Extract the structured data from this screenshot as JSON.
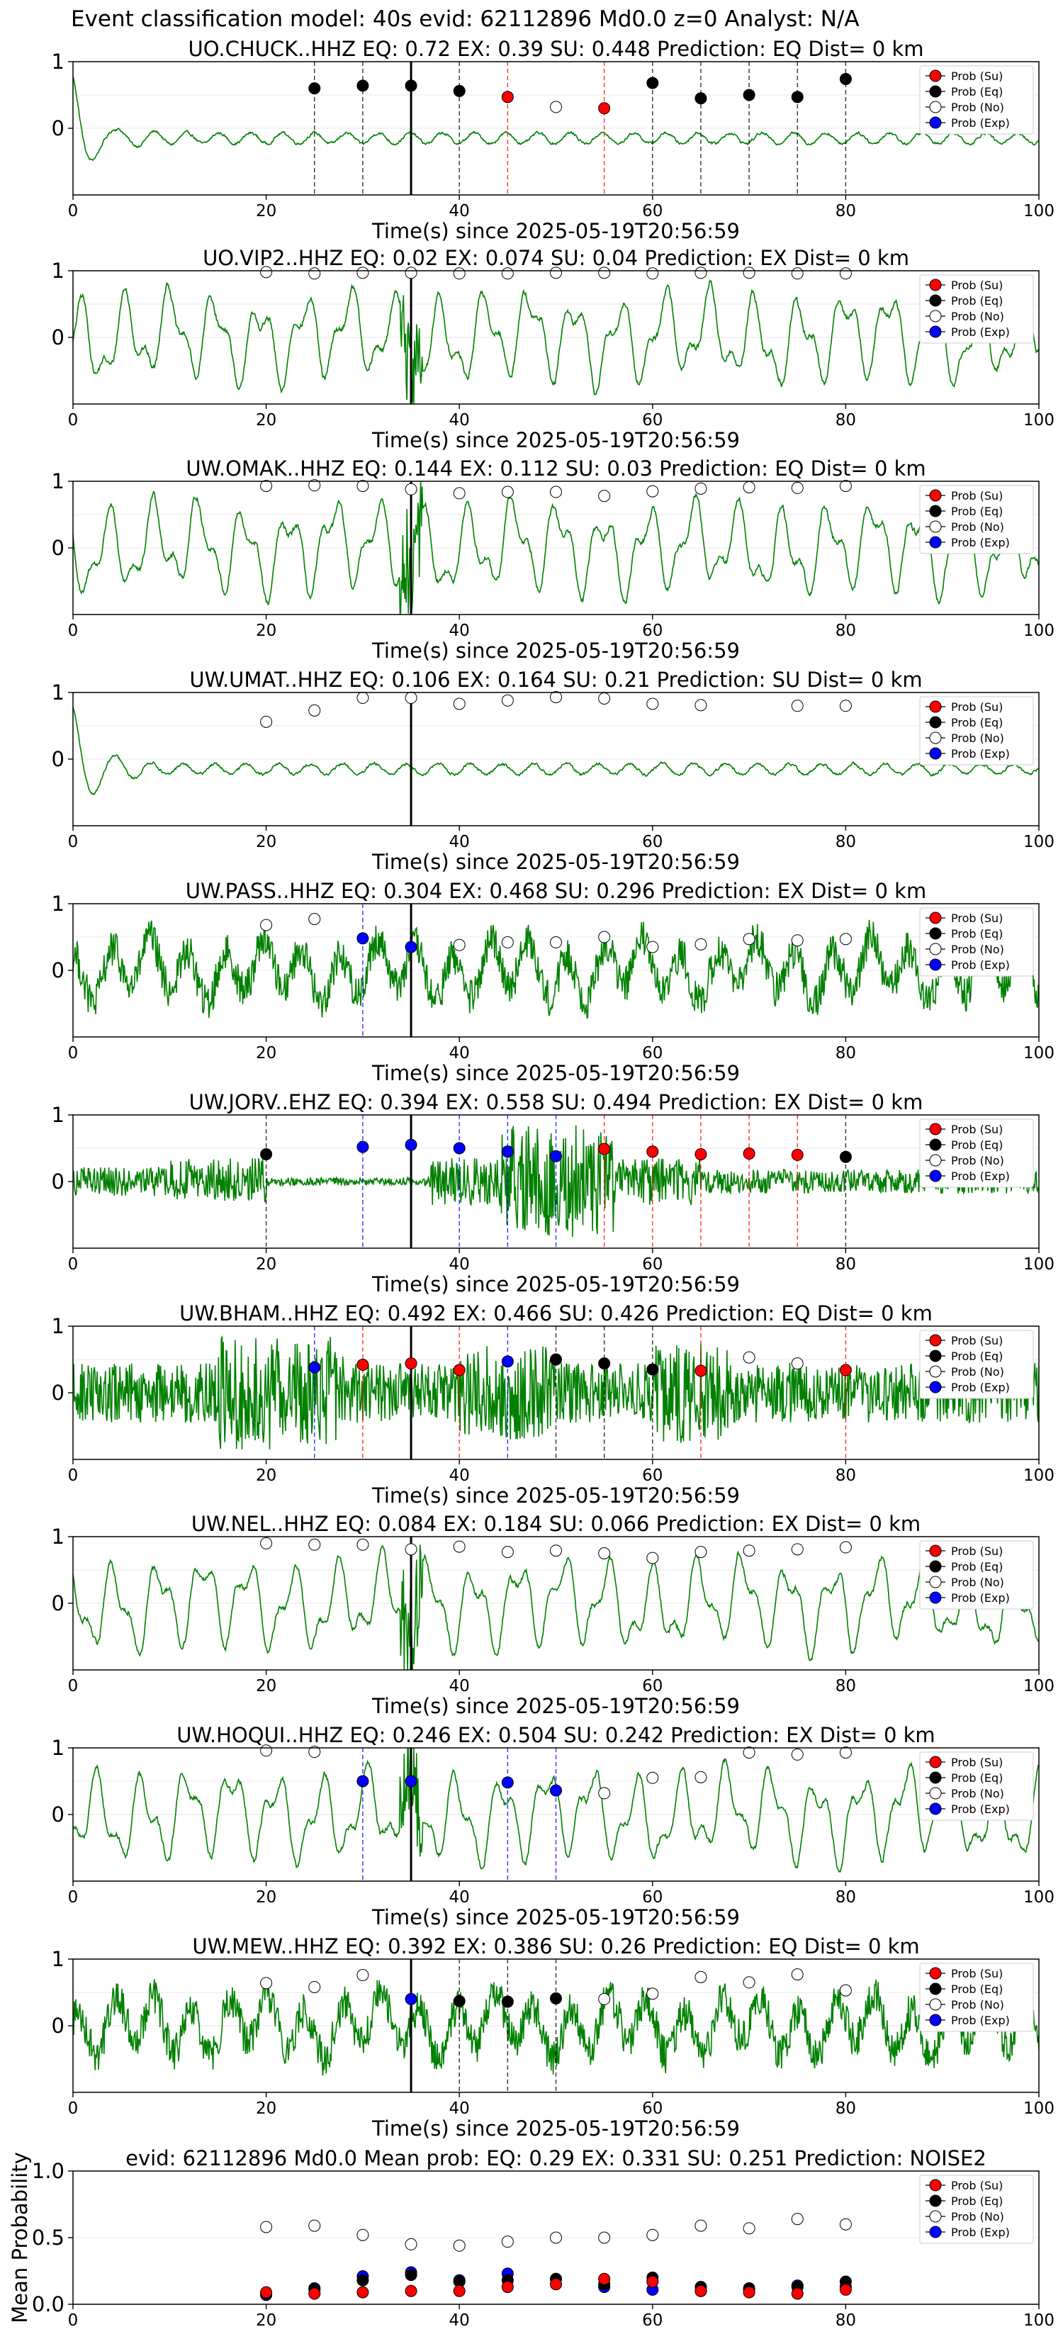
{
  "figure": {
    "suptitle": "Event classification model: 40s evid: 62112896 Md0.0 z=0 Analyst: N/A"
  },
  "legend": {
    "entries": [
      {
        "key": "su",
        "label": "Prob (Su)",
        "color": "#ff0000"
      },
      {
        "key": "eq",
        "label": "Prob (Eq)",
        "color": "#000000"
      },
      {
        "key": "no",
        "label": "Prob (No)",
        "color": "#ffffff"
      },
      {
        "key": "exp",
        "label": "Prob (Exp)",
        "color": "#0000ff"
      }
    ]
  },
  "colors": {
    "waveform": "#008000",
    "su": "#ff0000",
    "eq": "#000000",
    "no": "#ffffff",
    "exp": "#0000ff",
    "axis": "#000000",
    "grid": "#e8e8e8"
  },
  "chart_data": [
    {
      "type": "line",
      "station": "UO.CHUCK..HHZ",
      "title": "UO.CHUCK..HHZ   EQ: 0.72  EX: 0.39  SU: 0.448   Prediction: EQ    Dist= 0 km",
      "xlabel": "Time(s) since 2025-05-19T20:56:59",
      "xlim": [
        0,
        100
      ],
      "ylim": [
        -1,
        1
      ],
      "x_ticks": [
        0,
        20,
        40,
        60,
        80,
        100
      ],
      "y_ticks": [
        0,
        1
      ],
      "legend_position": "top-right",
      "grid": true,
      "waveform_profile": "decay",
      "origin_time": 35,
      "points": [
        {
          "x": 25,
          "y": 0.6,
          "cls": "eq"
        },
        {
          "x": 30,
          "y": 0.64,
          "cls": "eq"
        },
        {
          "x": 35,
          "y": 0.64,
          "cls": "eq"
        },
        {
          "x": 40,
          "y": 0.56,
          "cls": "eq"
        },
        {
          "x": 45,
          "y": 0.47,
          "cls": "su"
        },
        {
          "x": 50,
          "y": 0.32,
          "cls": "no"
        },
        {
          "x": 55,
          "y": 0.3,
          "cls": "su"
        },
        {
          "x": 60,
          "y": 0.68,
          "cls": "eq"
        },
        {
          "x": 65,
          "y": 0.45,
          "cls": "eq"
        },
        {
          "x": 70,
          "y": 0.5,
          "cls": "eq"
        },
        {
          "x": 75,
          "y": 0.47,
          "cls": "eq"
        },
        {
          "x": 80,
          "y": 0.74,
          "cls": "eq"
        }
      ]
    },
    {
      "type": "line",
      "station": "UO.VIP2..HHZ",
      "title": "UO.VIP2..HHZ   EQ: 0.02  EX: 0.074  SU: 0.04   Prediction: EX    Dist= 0 km",
      "xlabel": "Time(s) since 2025-05-19T20:56:59",
      "xlim": [
        0,
        100
      ],
      "ylim": [
        -1,
        1
      ],
      "x_ticks": [
        0,
        20,
        40,
        60,
        80,
        100
      ],
      "y_ticks": [
        0,
        1
      ],
      "legend_position": "top-right",
      "grid": true,
      "waveform_profile": "wavy",
      "origin_time": 35,
      "points": [
        {
          "x": 20,
          "y": 0.98,
          "cls": "no"
        },
        {
          "x": 25,
          "y": 0.96,
          "cls": "no"
        },
        {
          "x": 30,
          "y": 0.97,
          "cls": "no"
        },
        {
          "x": 35,
          "y": 0.97,
          "cls": "no"
        },
        {
          "x": 40,
          "y": 0.96,
          "cls": "no"
        },
        {
          "x": 45,
          "y": 0.96,
          "cls": "no"
        },
        {
          "x": 50,
          "y": 0.97,
          "cls": "no"
        },
        {
          "x": 55,
          "y": 0.97,
          "cls": "no"
        },
        {
          "x": 60,
          "y": 0.96,
          "cls": "no"
        },
        {
          "x": 65,
          "y": 0.97,
          "cls": "no"
        },
        {
          "x": 70,
          "y": 0.97,
          "cls": "no"
        },
        {
          "x": 75,
          "y": 0.96,
          "cls": "no"
        },
        {
          "x": 80,
          "y": 0.96,
          "cls": "no"
        }
      ]
    },
    {
      "type": "line",
      "station": "UW.OMAK..HHZ",
      "title": "UW.OMAK..HHZ   EQ: 0.144  EX: 0.112  SU: 0.03   Prediction: EQ    Dist= 0 km",
      "xlabel": "Time(s) since 2025-05-19T20:56:59",
      "xlim": [
        0,
        100
      ],
      "ylim": [
        -1,
        1
      ],
      "x_ticks": [
        0,
        20,
        40,
        60,
        80,
        100
      ],
      "y_ticks": [
        0,
        1
      ],
      "legend_position": "top-right",
      "grid": true,
      "waveform_profile": "wavy",
      "origin_time": 35,
      "points": [
        {
          "x": 20,
          "y": 0.93,
          "cls": "no"
        },
        {
          "x": 25,
          "y": 0.94,
          "cls": "no"
        },
        {
          "x": 30,
          "y": 0.93,
          "cls": "no"
        },
        {
          "x": 35,
          "y": 0.88,
          "cls": "no"
        },
        {
          "x": 40,
          "y": 0.82,
          "cls": "no"
        },
        {
          "x": 45,
          "y": 0.84,
          "cls": "no"
        },
        {
          "x": 50,
          "y": 0.84,
          "cls": "no"
        },
        {
          "x": 55,
          "y": 0.78,
          "cls": "no"
        },
        {
          "x": 60,
          "y": 0.85,
          "cls": "no"
        },
        {
          "x": 65,
          "y": 0.89,
          "cls": "no"
        },
        {
          "x": 70,
          "y": 0.91,
          "cls": "no"
        },
        {
          "x": 75,
          "y": 0.9,
          "cls": "no"
        },
        {
          "x": 80,
          "y": 0.93,
          "cls": "no"
        }
      ]
    },
    {
      "type": "line",
      "station": "UW.UMAT..HHZ",
      "title": "UW.UMAT..HHZ   EQ: 0.106  EX: 0.164  SU: 0.21   Prediction: SU    Dist= 0 km",
      "xlabel": "Time(s) since 2025-05-19T20:56:59",
      "xlim": [
        0,
        100
      ],
      "ylim": [
        -1,
        1
      ],
      "x_ticks": [
        0,
        20,
        40,
        60,
        80,
        100
      ],
      "y_ticks": [
        0,
        1
      ],
      "legend_position": "top-right",
      "grid": true,
      "waveform_profile": "decay",
      "origin_time": 35,
      "points": [
        {
          "x": 20,
          "y": 0.56,
          "cls": "no"
        },
        {
          "x": 25,
          "y": 0.73,
          "cls": "no"
        },
        {
          "x": 30,
          "y": 0.92,
          "cls": "no"
        },
        {
          "x": 35,
          "y": 0.92,
          "cls": "no"
        },
        {
          "x": 40,
          "y": 0.83,
          "cls": "no"
        },
        {
          "x": 45,
          "y": 0.88,
          "cls": "no"
        },
        {
          "x": 50,
          "y": 0.93,
          "cls": "no"
        },
        {
          "x": 55,
          "y": 0.91,
          "cls": "no"
        },
        {
          "x": 60,
          "y": 0.83,
          "cls": "no"
        },
        {
          "x": 65,
          "y": 0.81,
          "cls": "no"
        },
        {
          "x": 75,
          "y": 0.8,
          "cls": "no"
        },
        {
          "x": 80,
          "y": 0.8,
          "cls": "no"
        }
      ]
    },
    {
      "type": "line",
      "station": "UW.PASS..HHZ",
      "title": "UW.PASS..HHZ   EQ: 0.304  EX: 0.468  SU: 0.296   Prediction: EX    Dist= 0 km",
      "xlabel": "Time(s) since 2025-05-19T20:56:59",
      "xlim": [
        0,
        100
      ],
      "ylim": [
        -1,
        1
      ],
      "x_ticks": [
        0,
        20,
        40,
        60,
        80,
        100
      ],
      "y_ticks": [
        0,
        1
      ],
      "legend_position": "top-right",
      "grid": true,
      "waveform_profile": "noisy",
      "origin_time": 35,
      "points": [
        {
          "x": 20,
          "y": 0.68,
          "cls": "no"
        },
        {
          "x": 25,
          "y": 0.77,
          "cls": "no"
        },
        {
          "x": 30,
          "y": 0.48,
          "cls": "exp"
        },
        {
          "x": 35,
          "y": 0.35,
          "cls": "exp"
        },
        {
          "x": 40,
          "y": 0.38,
          "cls": "no"
        },
        {
          "x": 45,
          "y": 0.42,
          "cls": "no"
        },
        {
          "x": 50,
          "y": 0.42,
          "cls": "no"
        },
        {
          "x": 55,
          "y": 0.5,
          "cls": "no"
        },
        {
          "x": 60,
          "y": 0.35,
          "cls": "no"
        },
        {
          "x": 65,
          "y": 0.39,
          "cls": "no"
        },
        {
          "x": 70,
          "y": 0.47,
          "cls": "no"
        },
        {
          "x": 75,
          "y": 0.45,
          "cls": "no"
        },
        {
          "x": 80,
          "y": 0.47,
          "cls": "no"
        }
      ]
    },
    {
      "type": "line",
      "station": "UW.JORV..EHZ",
      "title": "UW.JORV..EHZ   EQ: 0.394  EX: 0.558  SU: 0.494   Prediction: EX    Dist= 0 km",
      "xlabel": "Time(s) since 2025-05-19T20:56:59",
      "xlim": [
        0,
        100
      ],
      "ylim": [
        -1,
        1
      ],
      "x_ticks": [
        0,
        20,
        40,
        60,
        80,
        100
      ],
      "y_ticks": [
        0,
        1
      ],
      "legend_position": "top-right",
      "grid": true,
      "waveform_profile": "burst",
      "origin_time": 35,
      "points": [
        {
          "x": 20,
          "y": 0.41,
          "cls": "eq"
        },
        {
          "x": 30,
          "y": 0.52,
          "cls": "exp"
        },
        {
          "x": 35,
          "y": 0.55,
          "cls": "exp"
        },
        {
          "x": 40,
          "y": 0.5,
          "cls": "exp"
        },
        {
          "x": 45,
          "y": 0.45,
          "cls": "exp"
        },
        {
          "x": 50,
          "y": 0.38,
          "cls": "exp"
        },
        {
          "x": 55,
          "y": 0.49,
          "cls": "su"
        },
        {
          "x": 60,
          "y": 0.45,
          "cls": "su"
        },
        {
          "x": 65,
          "y": 0.41,
          "cls": "su"
        },
        {
          "x": 70,
          "y": 0.42,
          "cls": "su"
        },
        {
          "x": 75,
          "y": 0.4,
          "cls": "su"
        },
        {
          "x": 80,
          "y": 0.37,
          "cls": "eq"
        }
      ]
    },
    {
      "type": "line",
      "station": "UW.BHAM..HHZ",
      "title": "UW.BHAM..HHZ   EQ: 0.492  EX: 0.466  SU: 0.426   Prediction: EQ    Dist= 0 km",
      "xlabel": "Time(s) since 2025-05-19T20:56:59",
      "xlim": [
        0,
        100
      ],
      "ylim": [
        -1,
        1
      ],
      "x_ticks": [
        0,
        20,
        40,
        60,
        80,
        100
      ],
      "y_ticks": [
        0,
        1
      ],
      "legend_position": "top-right",
      "grid": true,
      "waveform_profile": "dense",
      "origin_time": 35,
      "points": [
        {
          "x": 25,
          "y": 0.38,
          "cls": "exp"
        },
        {
          "x": 30,
          "y": 0.42,
          "cls": "su"
        },
        {
          "x": 35,
          "y": 0.44,
          "cls": "su"
        },
        {
          "x": 40,
          "y": 0.34,
          "cls": "su"
        },
        {
          "x": 45,
          "y": 0.47,
          "cls": "exp"
        },
        {
          "x": 50,
          "y": 0.5,
          "cls": "eq"
        },
        {
          "x": 55,
          "y": 0.44,
          "cls": "eq"
        },
        {
          "x": 60,
          "y": 0.35,
          "cls": "eq"
        },
        {
          "x": 65,
          "y": 0.33,
          "cls": "su"
        },
        {
          "x": 70,
          "y": 0.53,
          "cls": "no"
        },
        {
          "x": 75,
          "y": 0.44,
          "cls": "no"
        },
        {
          "x": 80,
          "y": 0.34,
          "cls": "su"
        }
      ]
    },
    {
      "type": "line",
      "station": "UW.NEL..HHZ",
      "title": "UW.NEL..HHZ   EQ: 0.084  EX: 0.184  SU: 0.066   Prediction: EX    Dist= 0 km",
      "xlabel": "Time(s) since 2025-05-19T20:56:59",
      "xlim": [
        0,
        100
      ],
      "ylim": [
        -1,
        1
      ],
      "x_ticks": [
        0,
        20,
        40,
        60,
        80,
        100
      ],
      "y_ticks": [
        0,
        1
      ],
      "legend_position": "top-right",
      "grid": true,
      "waveform_profile": "wavy",
      "origin_time": 35,
      "points": [
        {
          "x": 20,
          "y": 0.9,
          "cls": "no"
        },
        {
          "x": 25,
          "y": 0.88,
          "cls": "no"
        },
        {
          "x": 30,
          "y": 0.88,
          "cls": "no"
        },
        {
          "x": 35,
          "y": 0.81,
          "cls": "no"
        },
        {
          "x": 40,
          "y": 0.85,
          "cls": "no"
        },
        {
          "x": 45,
          "y": 0.77,
          "cls": "no"
        },
        {
          "x": 50,
          "y": 0.79,
          "cls": "no"
        },
        {
          "x": 55,
          "y": 0.75,
          "cls": "no"
        },
        {
          "x": 60,
          "y": 0.68,
          "cls": "no"
        },
        {
          "x": 65,
          "y": 0.77,
          "cls": "no"
        },
        {
          "x": 70,
          "y": 0.79,
          "cls": "no"
        },
        {
          "x": 75,
          "y": 0.81,
          "cls": "no"
        },
        {
          "x": 80,
          "y": 0.84,
          "cls": "no"
        }
      ]
    },
    {
      "type": "line",
      "station": "UW.HOQUI..HHZ",
      "title": "UW.HOQUI..HHZ   EQ: 0.246  EX: 0.504  SU: 0.242   Prediction: EX    Dist= 0 km",
      "xlabel": "Time(s) since 2025-05-19T20:56:59",
      "xlim": [
        0,
        100
      ],
      "ylim": [
        -1,
        1
      ],
      "x_ticks": [
        0,
        20,
        40,
        60,
        80,
        100
      ],
      "y_ticks": [
        0,
        1
      ],
      "legend_position": "top-right",
      "grid": true,
      "waveform_profile": "wavy",
      "origin_time": 35,
      "points": [
        {
          "x": 20,
          "y": 0.96,
          "cls": "no"
        },
        {
          "x": 25,
          "y": 0.94,
          "cls": "no"
        },
        {
          "x": 30,
          "y": 0.5,
          "cls": "exp"
        },
        {
          "x": 35,
          "y": 0.5,
          "cls": "exp"
        },
        {
          "x": 45,
          "y": 0.48,
          "cls": "exp"
        },
        {
          "x": 50,
          "y": 0.36,
          "cls": "exp"
        },
        {
          "x": 55,
          "y": 0.32,
          "cls": "no"
        },
        {
          "x": 60,
          "y": 0.55,
          "cls": "no"
        },
        {
          "x": 65,
          "y": 0.56,
          "cls": "no"
        },
        {
          "x": 70,
          "y": 0.93,
          "cls": "no"
        },
        {
          "x": 75,
          "y": 0.9,
          "cls": "no"
        },
        {
          "x": 80,
          "y": 0.93,
          "cls": "no"
        }
      ]
    },
    {
      "type": "line",
      "station": "UW.MEW..HHZ",
      "title": "UW.MEW..HHZ   EQ: 0.392  EX: 0.386  SU: 0.26   Prediction: EQ    Dist= 0 km",
      "xlabel": "Time(s) since 2025-05-19T20:56:59",
      "xlim": [
        0,
        100
      ],
      "ylim": [
        -1,
        1
      ],
      "x_ticks": [
        0,
        20,
        40,
        60,
        80,
        100
      ],
      "y_ticks": [
        0,
        1
      ],
      "legend_position": "top-right",
      "grid": true,
      "waveform_profile": "noisy",
      "origin_time": 35,
      "points": [
        {
          "x": 20,
          "y": 0.64,
          "cls": "no"
        },
        {
          "x": 25,
          "y": 0.58,
          "cls": "no"
        },
        {
          "x": 30,
          "y": 0.76,
          "cls": "no"
        },
        {
          "x": 35,
          "y": 0.4,
          "cls": "exp"
        },
        {
          "x": 40,
          "y": 0.37,
          "cls": "eq"
        },
        {
          "x": 45,
          "y": 0.36,
          "cls": "eq"
        },
        {
          "x": 50,
          "y": 0.41,
          "cls": "eq"
        },
        {
          "x": 55,
          "y": 0.4,
          "cls": "no"
        },
        {
          "x": 60,
          "y": 0.48,
          "cls": "no"
        },
        {
          "x": 65,
          "y": 0.73,
          "cls": "no"
        },
        {
          "x": 70,
          "y": 0.65,
          "cls": "no"
        },
        {
          "x": 75,
          "y": 0.77,
          "cls": "no"
        },
        {
          "x": 80,
          "y": 0.53,
          "cls": "no"
        }
      ]
    },
    {
      "type": "scatter",
      "title": "evid: 62112896  Md0.0   Mean prob:   EQ: 0.29  EX: 0.331  SU: 0.251   Prediction: NOISE2",
      "xlabel": "",
      "ylabel": "Mean Probability",
      "xlim": [
        0,
        100
      ],
      "ylim": [
        0,
        1
      ],
      "x_ticks": [
        0,
        20,
        40,
        60,
        80,
        100
      ],
      "y_ticks": [
        0.0,
        0.5,
        1.0
      ],
      "y_tick_labels": [
        "0.0",
        "0.5",
        "1.0"
      ],
      "legend_position": "top-right",
      "grid": true,
      "x": [
        20,
        25,
        30,
        35,
        40,
        45,
        50,
        55,
        60,
        65,
        70,
        75,
        80
      ],
      "series": [
        {
          "name": "Prob (No)",
          "cls": "no",
          "values": [
            0.58,
            0.59,
            0.52,
            0.45,
            0.44,
            0.47,
            0.5,
            0.5,
            0.52,
            0.59,
            0.57,
            0.64,
            0.6
          ]
        },
        {
          "name": "Prob (Exp)",
          "cls": "exp",
          "values": [
            0.07,
            0.12,
            0.21,
            0.24,
            0.18,
            0.23,
            0.19,
            0.13,
            0.11,
            0.1,
            0.11,
            0.14,
            0.13
          ]
        },
        {
          "name": "Prob (Eq)",
          "cls": "eq",
          "values": [
            0.08,
            0.11,
            0.18,
            0.22,
            0.17,
            0.18,
            0.19,
            0.15,
            0.2,
            0.13,
            0.12,
            0.13,
            0.17
          ]
        },
        {
          "name": "Prob (Su)",
          "cls": "su",
          "values": [
            0.09,
            0.08,
            0.09,
            0.1,
            0.1,
            0.13,
            0.15,
            0.19,
            0.17,
            0.1,
            0.09,
            0.08,
            0.11
          ]
        }
      ]
    }
  ]
}
